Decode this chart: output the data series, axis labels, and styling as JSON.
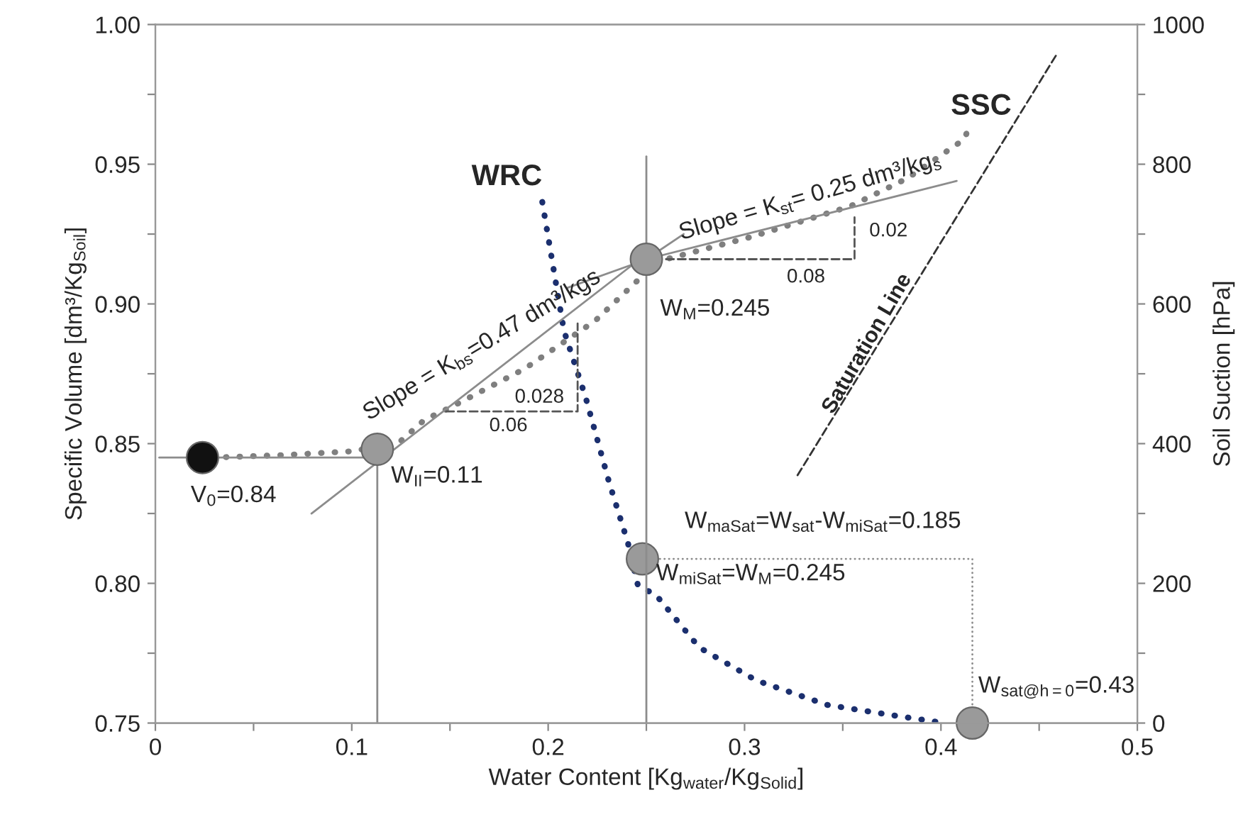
{
  "chart_data": {
    "type": "line",
    "xlabel": "Water Content [Kg$_{water}$/Kg$_{Solid}$]",
    "ylabel": "Specific Volume [dm³/Kg$_{Soil}$]",
    "y2label": "Soil Suction [hPa]",
    "xlim": [
      0,
      0.5
    ],
    "xticks": [
      0,
      {
        "value": 0.05,
        "label": null
      },
      0.1,
      {
        "value": 0.15,
        "label": null
      },
      0.2,
      {
        "value": 0.25,
        "label": null
      },
      0.3,
      {
        "value": 0.35,
        "label": null
      },
      0.4,
      {
        "value": 0.45,
        "label": null
      },
      0.5
    ],
    "ylim": [
      0.75,
      1.0
    ],
    "yticks": [
      {
        "value": 0.75,
        "label": "0.75"
      },
      {
        "value": 0.775,
        "label": null
      },
      {
        "value": 0.8,
        "label": "0.80"
      },
      {
        "value": 0.825,
        "label": null
      },
      {
        "value": 0.85,
        "label": "0.85"
      },
      {
        "value": 0.875,
        "label": null
      },
      {
        "value": 0.9,
        "label": "0.90"
      },
      {
        "value": 0.925,
        "label": null
      },
      {
        "value": 0.95,
        "label": "0.95"
      },
      {
        "value": 0.975,
        "label": null
      },
      {
        "value": 1.0,
        "label": "1.00"
      }
    ],
    "y2lim": [
      0,
      1000
    ],
    "y2ticks": [
      0,
      {
        "value": 100,
        "label": null
      },
      200,
      {
        "value": 300,
        "label": null
      },
      400,
      {
        "value": 500,
        "label": null
      },
      600,
      {
        "value": 700,
        "label": null
      },
      800,
      {
        "value": 900,
        "label": null
      },
      1000
    ],
    "grid": false,
    "legend": false,
    "series": [
      {
        "color": "#7f7f7f",
        "line_style": "dotted",
        "x": [
          0.029,
          0.065,
          0.101,
          0.125,
          0.137,
          0.152,
          0.188,
          0.224,
          0.249,
          0.26,
          0.3035,
          0.354,
          0.383,
          0.412,
          0.414
        ],
        "values": [
          0.845,
          0.8459,
          0.8473,
          0.851,
          0.8585,
          0.8636,
          0.8768,
          0.894,
          0.9107,
          0.916,
          0.924,
          0.935,
          0.945,
          0.959,
          0.963
        ]
      },
      {
        "color": "#1b2f6e",
        "line_style": "dotted",
        "axis": "y2",
        "x": [
          0.197,
          0.208,
          0.219,
          0.231,
          0.2406,
          0.2457,
          0.255,
          0.277,
          0.306,
          0.342,
          0.378,
          0.402
        ],
        "values": [
          746,
          562,
          467,
          345,
          258,
          197,
          183,
          108,
          61,
          26,
          10,
          0
        ]
      },
      {
        "color": "#333333",
        "line_style": "dashed",
        "x": [
          0.327,
          0.459
        ],
        "values": [
          0.8387,
          0.9894
        ]
      },
      {
        "color": "#8c8c8c",
        "line_style": "solid",
        "x": [
          0.0795,
          0.2457
        ],
        "values": [
          0.825,
          0.9155
        ]
      },
      {
        "color": "#8c8c8c",
        "line_style": "solid",
        "x": [
          0.25,
          0.408
        ],
        "values": [
          0.916,
          0.944
        ]
      },
      {
        "color": "#8c8c8c",
        "line_style": "solid",
        "x": [
          0.2095,
          0.2457
        ],
        "values": [
          0.9057,
          0.9148
        ]
      },
      {
        "color": "#8c8c8c",
        "line_style": "solid",
        "x": [
          0.25,
          0.269
        ],
        "values": [
          0.916,
          0.925
        ]
      },
      {
        "color": "#555555",
        "line_style": "dashed",
        "x": [
          0.148,
          0.215,
          0.215
        ],
        "values": [
          0.8615,
          0.8615,
          0.893
        ]
      },
      {
        "color": "#555555",
        "line_style": "dashed",
        "x": [
          0.26,
          0.356,
          0.356
        ],
        "values": [
          0.916,
          0.916,
          0.931
        ]
      },
      {
        "color": "#8c8c8c",
        "line_style": "solid",
        "x": [
          0.113,
          0.113
        ],
        "values": [
          0.848,
          0.75
        ]
      },
      {
        "color": "#8c8c8c",
        "line_style": "solid",
        "x": [
          0.25,
          0.25
        ],
        "values": [
          0.9528,
          0.75
        ]
      },
      {
        "color": "#8c8c8c",
        "line_style": "solid",
        "x": [
          0.113,
          0.002
        ],
        "values": [
          0.845,
          0.845
        ]
      },
      {
        "color": "#8c8c8c",
        "line_style": "dotted",
        "axis": "y2",
        "x": [
          0.25,
          0.416,
          0.416
        ],
        "values": [
          235,
          235,
          0
        ]
      },
      {
        "type": "scatter",
        "color": "#111111",
        "x": [
          0.024
        ],
        "values": [
          0.845
        ]
      },
      {
        "type": "scatter",
        "color": "#9a9a9a",
        "x": [
          0.113,
          0.25
        ],
        "values": [
          0.848,
          0.916
        ]
      },
      {
        "type": "scatter",
        "color": "#9a9a9a",
        "axis": "y2",
        "x": [
          0.248,
          0.416
        ],
        "values": [
          235,
          0
        ]
      }
    ],
    "annotations": [
      "SSC",
      "WRC",
      "Saturation Line",
      "Slope = K$_{bs}$=0.47 dm³/kgs",
      "Slope = K$_{st}$= 0.25 dm³/kg$_{s}$",
      "0.028",
      "0.06",
      "0.08",
      "0.02",
      "W$_{M}$=0.245",
      "W$_{II}$=0.11",
      "V$_{0}$=0.84",
      "W$_{maSat}$=W$_{sat}$-W$_{miSat}$=0.185",
      "W$_{miSat}$=W$_{M}$=0.245",
      "W$_{sat@h=0}$=0.43"
    ]
  }
}
